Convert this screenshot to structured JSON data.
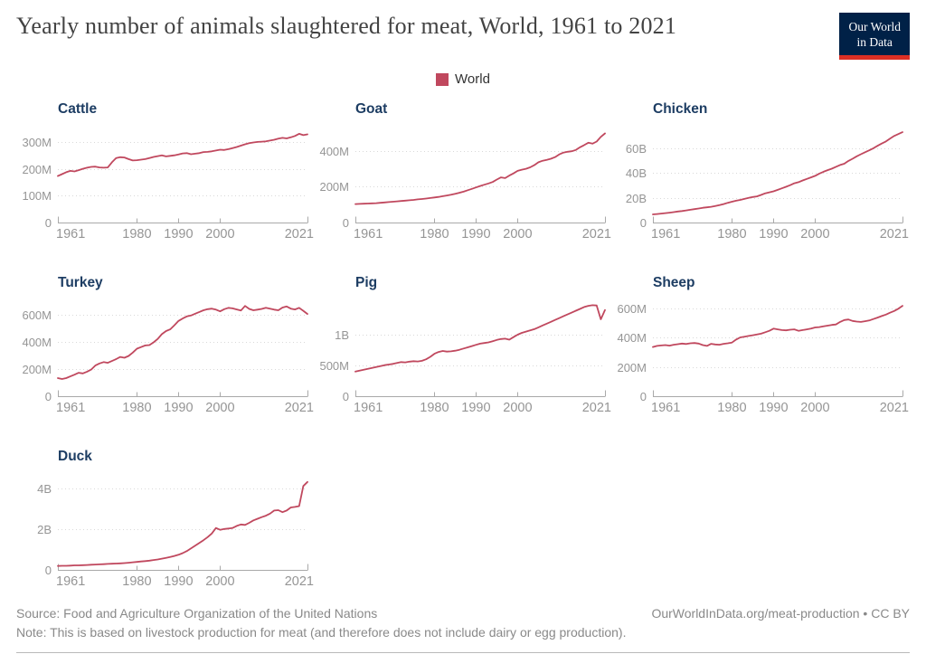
{
  "header": {
    "title": "Yearly number of animals slaughtered for meat, World, 1961 to 2021",
    "logo": {
      "line1": "Our World",
      "line2": "in Data"
    }
  },
  "legend": {
    "label": "World",
    "color": "#c0485e"
  },
  "colors": {
    "line": "#c0485e",
    "chart_title": "#1d3d63",
    "axis_text": "#959595",
    "logo_navy": "#002147",
    "logo_red": "#dc2f24"
  },
  "footer": {
    "source": "Source: Food and Agriculture Organization of the United Nations",
    "note": "Note: This is based on livestock production for meat (and therefore does not include dairy or egg production).",
    "credit": "OurWorldInData.org/meat-production • CC BY"
  },
  "chart_data": [
    {
      "type": "line",
      "title": "Cattle",
      "series_name": "World",
      "unit": "millions",
      "x_start": 1961,
      "x_end": 2021,
      "ymax": 350,
      "grid": true,
      "yticks": [
        {
          "v": 0,
          "label": "0"
        },
        {
          "v": 100,
          "label": "100M"
        },
        {
          "v": 200,
          "label": "200M"
        },
        {
          "v": 300,
          "label": "300M"
        }
      ],
      "xticks": [
        {
          "year": 1961,
          "label": "1961",
          "align": "start"
        },
        {
          "year": 1980,
          "label": "1980",
          "align": "middle"
        },
        {
          "year": 1990,
          "label": "1990",
          "align": "middle"
        },
        {
          "year": 2000,
          "label": "2000",
          "align": "middle"
        },
        {
          "year": 2021,
          "label": "2021",
          "align": "end"
        }
      ],
      "values": [
        173,
        180,
        187,
        192,
        190,
        195,
        200,
        204,
        207,
        208,
        205,
        204,
        205,
        224,
        240,
        243,
        242,
        236,
        231,
        232,
        234,
        236,
        240,
        244,
        247,
        250,
        246,
        248,
        250,
        253,
        257,
        258,
        254,
        256,
        258,
        262,
        263,
        265,
        268,
        271,
        270,
        273,
        277,
        281,
        286,
        291,
        295,
        298,
        300,
        301,
        302,
        305,
        308,
        312,
        315,
        313,
        317,
        322,
        330,
        325,
        328
      ]
    },
    {
      "type": "line",
      "title": "Goat",
      "series_name": "World",
      "unit": "millions",
      "x_start": 1961,
      "x_end": 2021,
      "ymax": 525,
      "grid": true,
      "yticks": [
        {
          "v": 0,
          "label": "0"
        },
        {
          "v": 200,
          "label": "200M"
        },
        {
          "v": 400,
          "label": "400M"
        }
      ],
      "xticks": [
        {
          "year": 1961,
          "label": "1961",
          "align": "start"
        },
        {
          "year": 1980,
          "label": "1980",
          "align": "middle"
        },
        {
          "year": 1990,
          "label": "1990",
          "align": "middle"
        },
        {
          "year": 2000,
          "label": "2000",
          "align": "middle"
        },
        {
          "year": 2021,
          "label": "2021",
          "align": "end"
        }
      ],
      "values": [
        103,
        104,
        105,
        106,
        107,
        108,
        110,
        112,
        114,
        116,
        118,
        120,
        122,
        124,
        126,
        129,
        131,
        134,
        137,
        140,
        143,
        147,
        151,
        155,
        160,
        166,
        172,
        180,
        188,
        196,
        204,
        211,
        218,
        226,
        240,
        252,
        248,
        262,
        274,
        288,
        295,
        300,
        308,
        320,
        336,
        345,
        350,
        356,
        365,
        380,
        390,
        395,
        398,
        405,
        420,
        432,
        445,
        440,
        452,
        478,
        497
      ]
    },
    {
      "type": "line",
      "title": "Chicken",
      "series_name": "World",
      "unit": "billions",
      "x_start": 1961,
      "x_end": 2021,
      "ymax": 76,
      "grid": true,
      "yticks": [
        {
          "v": 0,
          "label": "0"
        },
        {
          "v": 20,
          "label": "20B"
        },
        {
          "v": 40,
          "label": "40B"
        },
        {
          "v": 60,
          "label": "60B"
        }
      ],
      "xticks": [
        {
          "year": 1961,
          "label": "1961",
          "align": "start"
        },
        {
          "year": 1980,
          "label": "1980",
          "align": "middle"
        },
        {
          "year": 1990,
          "label": "1990",
          "align": "middle"
        },
        {
          "year": 2000,
          "label": "2000",
          "align": "middle"
        },
        {
          "year": 2021,
          "label": "2021",
          "align": "end"
        }
      ],
      "values": [
        6.6,
        6.9,
        7.2,
        7.6,
        8,
        8.4,
        8.9,
        9.3,
        9.8,
        10.3,
        10.8,
        11.3,
        11.9,
        12.3,
        12.7,
        13.3,
        14,
        14.9,
        15.9,
        16.8,
        17.6,
        18.3,
        19.1,
        19.9,
        20.6,
        21.1,
        22.3,
        23.6,
        24.4,
        25.2,
        26.4,
        27.6,
        28.9,
        30.2,
        31.7,
        32.6,
        34,
        35.2,
        36.5,
        37.7,
        39.5,
        41,
        42.3,
        43.5,
        45,
        46.5,
        47.5,
        49.8,
        51.5,
        53.5,
        55.2,
        56.8,
        58.3,
        60,
        62,
        63.8,
        65.5,
        67.8,
        69.9,
        71.5,
        73
      ]
    },
    {
      "type": "line",
      "title": "Turkey",
      "series_name": "World",
      "unit": "millions",
      "x_start": 1961,
      "x_end": 2021,
      "ymax": 690,
      "grid": true,
      "yticks": [
        {
          "v": 0,
          "label": "0"
        },
        {
          "v": 200,
          "label": "200M"
        },
        {
          "v": 400,
          "label": "400M"
        },
        {
          "v": 600,
          "label": "600M"
        }
      ],
      "xticks": [
        {
          "year": 1961,
          "label": "1961",
          "align": "start"
        },
        {
          "year": 1980,
          "label": "1980",
          "align": "middle"
        },
        {
          "year": 1990,
          "label": "1990",
          "align": "middle"
        },
        {
          "year": 2000,
          "label": "2000",
          "align": "middle"
        },
        {
          "year": 2021,
          "label": "2021",
          "align": "end"
        }
      ],
      "values": [
        133,
        126,
        133,
        145,
        158,
        172,
        167,
        180,
        195,
        225,
        240,
        250,
        245,
        258,
        272,
        288,
        282,
        295,
        320,
        348,
        360,
        372,
        375,
        395,
        420,
        455,
        478,
        490,
        520,
        552,
        570,
        585,
        592,
        605,
        618,
        630,
        638,
        642,
        635,
        622,
        638,
        648,
        644,
        636,
        628,
        662,
        640,
        630,
        635,
        640,
        648,
        642,
        635,
        630,
        650,
        658,
        642,
        636,
        648,
        626,
        603
      ]
    },
    {
      "type": "line",
      "title": "Pig",
      "series_name": "World",
      "unit": "millions",
      "x_start": 1961,
      "x_end": 2021,
      "ymax": 1530,
      "grid": true,
      "yticks": [
        {
          "v": 0,
          "label": "0"
        },
        {
          "v": 500,
          "label": "500M"
        },
        {
          "v": 1000,
          "label": "1B"
        }
      ],
      "xticks": [
        {
          "year": 1961,
          "label": "1961",
          "align": "start"
        },
        {
          "year": 1980,
          "label": "1980",
          "align": "middle"
        },
        {
          "year": 1990,
          "label": "1990",
          "align": "middle"
        },
        {
          "year": 2000,
          "label": "2000",
          "align": "middle"
        },
        {
          "year": 2021,
          "label": "2021",
          "align": "end"
        }
      ],
      "values": [
        400,
        415,
        430,
        445,
        460,
        475,
        490,
        505,
        515,
        525,
        540,
        555,
        550,
        562,
        570,
        565,
        575,
        600,
        640,
        690,
        720,
        735,
        725,
        730,
        740,
        755,
        775,
        795,
        815,
        835,
        855,
        865,
        875,
        895,
        915,
        930,
        935,
        920,
        960,
        1000,
        1030,
        1050,
        1070,
        1090,
        1120,
        1150,
        1180,
        1210,
        1240,
        1270,
        1300,
        1330,
        1360,
        1390,
        1420,
        1450,
        1470,
        1480,
        1475,
        1250,
        1400
      ]
    },
    {
      "type": "line",
      "title": "Sheep",
      "series_name": "World",
      "unit": "millions",
      "x_start": 1961,
      "x_end": 2021,
      "ymax": 640,
      "grid": true,
      "yticks": [
        {
          "v": 0,
          "label": "0"
        },
        {
          "v": 200,
          "label": "200M"
        },
        {
          "v": 400,
          "label": "400M"
        },
        {
          "v": 600,
          "label": "600M"
        }
      ],
      "xticks": [
        {
          "year": 1961,
          "label": "1961",
          "align": "start"
        },
        {
          "year": 1980,
          "label": "1980",
          "align": "middle"
        },
        {
          "year": 1990,
          "label": "1990",
          "align": "middle"
        },
        {
          "year": 2000,
          "label": "2000",
          "align": "middle"
        },
        {
          "year": 2021,
          "label": "2021",
          "align": "end"
        }
      ],
      "values": [
        335,
        342,
        345,
        348,
        344,
        350,
        354,
        358,
        355,
        360,
        362,
        358,
        348,
        342,
        356,
        352,
        350,
        356,
        360,
        365,
        385,
        400,
        405,
        410,
        415,
        420,
        425,
        435,
        445,
        460,
        455,
        450,
        448,
        452,
        455,
        445,
        450,
        455,
        460,
        468,
        470,
        475,
        480,
        485,
        488,
        505,
        518,
        522,
        512,
        508,
        505,
        510,
        515,
        525,
        535,
        545,
        555,
        568,
        580,
        595,
        615
      ]
    },
    {
      "type": "line",
      "title": "Duck",
      "series_name": "World",
      "unit": "billions",
      "x_start": 1961,
      "x_end": 2021,
      "ymax": 4.6,
      "grid": true,
      "yticks": [
        {
          "v": 0,
          "label": "0"
        },
        {
          "v": 2,
          "label": "2B"
        },
        {
          "v": 4,
          "label": "4B"
        }
      ],
      "xticks": [
        {
          "year": 1961,
          "label": "1961",
          "align": "start"
        },
        {
          "year": 1980,
          "label": "1980",
          "align": "middle"
        },
        {
          "year": 1990,
          "label": "1990",
          "align": "middle"
        },
        {
          "year": 2000,
          "label": "2000",
          "align": "middle"
        },
        {
          "year": 2021,
          "label": "2021",
          "align": "end"
        }
      ],
      "values": [
        0.19,
        0.2,
        0.2,
        0.21,
        0.22,
        0.22,
        0.23,
        0.24,
        0.25,
        0.26,
        0.27,
        0.28,
        0.29,
        0.3,
        0.31,
        0.32,
        0.33,
        0.35,
        0.37,
        0.39,
        0.41,
        0.43,
        0.45,
        0.48,
        0.51,
        0.55,
        0.59,
        0.63,
        0.68,
        0.74,
        0.82,
        0.92,
        1.05,
        1.18,
        1.32,
        1.45,
        1.6,
        1.78,
        2.05,
        1.96,
        2.0,
        2.02,
        2.05,
        2.15,
        2.22,
        2.2,
        2.3,
        2.42,
        2.5,
        2.58,
        2.65,
        2.75,
        2.9,
        2.92,
        2.82,
        2.9,
        3.05,
        3.08,
        3.12,
        4.1,
        4.3
      ]
    }
  ]
}
